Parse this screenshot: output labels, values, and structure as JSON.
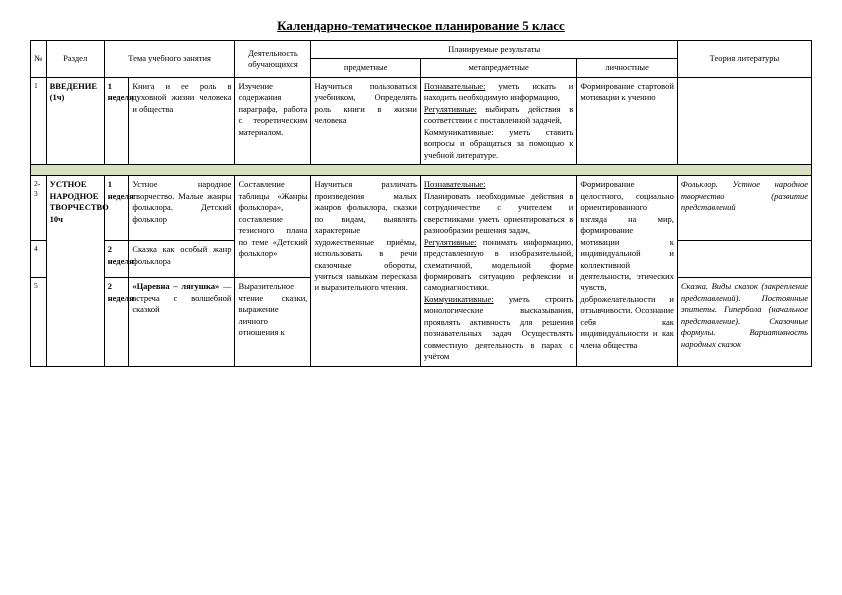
{
  "title": "Календарно-тематическое планирование 5 класс",
  "headers": {
    "num": "№",
    "section": "Раздел",
    "topic": "Тема учебного занятия",
    "activity": "Деятельность обучающихся",
    "results_group": "Планируемые результаты",
    "pred": "предметные",
    "meta": "метапредметные",
    "pers": "личностные",
    "theory": "Теория литературы"
  },
  "row1": {
    "num": "1",
    "section": "ВВЕДЕНИЕ (1ч)",
    "week_n": "1",
    "week_w": "неделя",
    "topic": "Книга и ее роль в духовной жизни человека и общества",
    "activity": "Изучение содержания параграфа, работа с теоретическим материалом.",
    "pred": "Научиться пользоваться учебником, Определять роль книги в жизни человека",
    "meta_poz_l": "Познавательные:",
    "meta_poz_t": " уметь искать и находить необходимую информацию,",
    "meta_reg_l": "Регулятивные:",
    "meta_reg_t": " выбирать действия в соответствии с поставленной задачей,",
    "meta_kom": "Коммуникативные: уметь ставить вопросы и обращаться за помощью к учебной литературе.",
    "pers": "Формирование стартовой мотивации к учению"
  },
  "row2": {
    "num": "2-3",
    "section": "УСТНОЕ НАРОДНОЕ ТВОРЧЕСТВО 10ч",
    "week_n": "1",
    "week_w": "неделя",
    "topic": "Устное народное творчество. Малые жанры фольклора. Детский фольклор",
    "activity": "Составление таблицы «Жанры фольклора», составление тезисного плана по теме «Детский фольклор»",
    "pred": "Научиться различать произведения малых жанров фольклора, сказки по видам, выявлять характерные художественные приёмы, использовать в речи сказочные обороты, учиться навыкам пересказа и выразительного чтения.",
    "meta_poz_l": "Познавательные:",
    "meta_poz_t": "Планировать необходимые действия в сотрудничестве с учителем и сверстниками уметь ориентироваться в разнообразии решения задач,",
    "meta_reg_l": "Регулятивные:",
    "meta_reg_t": " понимать информацию, представленную в изобразительной, схематичной, модельной форме формировать ситуацию рефлексии и самодиагностики.",
    "meta_kom_l": "Коммуникативные:",
    "meta_kom_t": " уметь строить монологические высказывания, проявлять активность для решения познавательных задач Осуществлять совместную деятельность в парах с учётом",
    "pers": "Формирование целостного, социально ориентированного взгляда на мир, формирование мотивации к индивидуальной и коллективной деятельности, этических чувств, доброжелательности и отзывчивости. Осознание себя как индивидуальности и как члена общества",
    "theory": "Фольклор. Устное народное творчество (развитие представлений"
  },
  "row4": {
    "num": "4",
    "week_n": "2",
    "week_w": "неделя",
    "topic": "Сказка как особый жанр фольклора"
  },
  "row5": {
    "num": "5",
    "week_n": "2",
    "week_w": "неделя",
    "topic_a": "«Царевна – лягушка»",
    "topic_b": " — встреча с волшебной сказкой",
    "activity": "Выразительное чтение сказки, выражение личного отношения к",
    "theory": "Сказка. Виды сказок (закрепление представлений). Постоянные эпитеты. Гипербола (начальное представление). Сказочные формулы. Вариативность народных сказок"
  },
  "colors": {
    "spacer_bg": "#d8e0c0",
    "border": "#000000",
    "page_bg": "#ffffff",
    "text": "#000000"
  }
}
